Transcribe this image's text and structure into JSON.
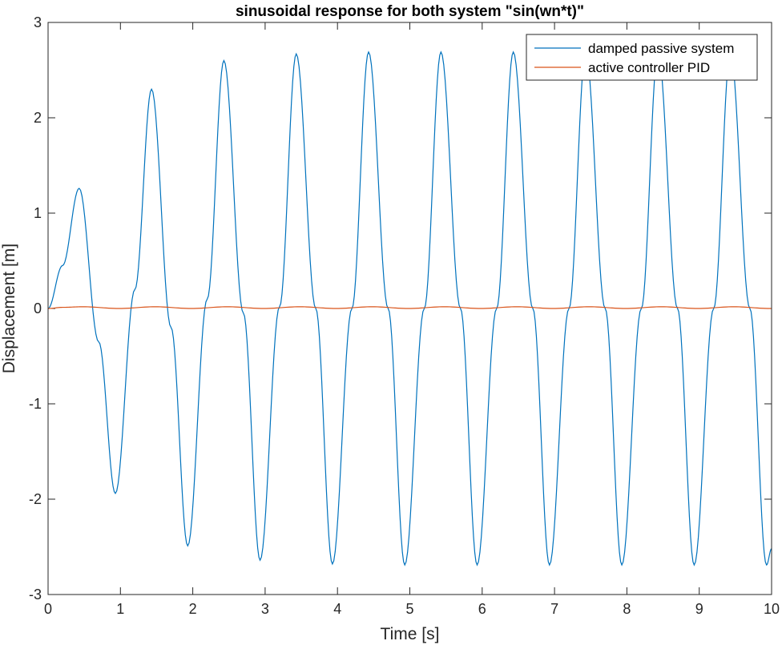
{
  "chart_data": {
    "type": "line",
    "title": "sinusoidal response for both system \"sin(wn*t)\"",
    "xlabel": "Time [s]",
    "ylabel": "Displacement [m]",
    "xlim": [
      0,
      10
    ],
    "ylim": [
      -3,
      3
    ],
    "xticks": [
      0,
      1,
      2,
      3,
      4,
      5,
      6,
      7,
      8,
      9,
      10
    ],
    "yticks": [
      -3,
      -2,
      -1,
      0,
      1,
      2,
      3
    ],
    "xtick_labels": [
      "0",
      "1",
      "2",
      "3",
      "4",
      "5",
      "6",
      "7",
      "8",
      "9",
      "10"
    ],
    "ytick_labels": [
      "-3",
      "-2",
      "-1",
      "0",
      "1",
      "2",
      "3"
    ],
    "grid": false,
    "legend_position": "top-right",
    "series": [
      {
        "name": "damped passive system",
        "color": "#0072BD",
        "x": [
          0,
          0.2,
          0.43,
          0.7,
          0.93,
          1.2,
          1.43,
          1.7,
          1.93,
          2.2,
          2.43,
          2.7,
          2.93,
          3.2,
          3.43,
          3.7,
          3.93,
          4.2,
          4.43,
          4.7,
          4.93,
          5.2,
          5.43,
          5.7,
          5.93,
          6.2,
          6.43,
          6.7,
          6.93,
          7.2,
          7.43,
          7.7,
          7.93,
          8.2,
          8.43,
          8.7,
          8.93,
          9.2,
          9.43,
          9.7,
          9.93,
          10.0
        ],
        "y": [
          0,
          0.45,
          1.26,
          -0.35,
          -1.94,
          0.2,
          2.3,
          -0.2,
          -2.49,
          0.1,
          2.6,
          -0.05,
          -2.64,
          0.02,
          2.67,
          0.0,
          -2.68,
          0.0,
          2.69,
          0.0,
          -2.69,
          0.0,
          2.69,
          0.0,
          -2.69,
          0.0,
          2.69,
          0.0,
          -2.69,
          0.0,
          2.69,
          0.0,
          -2.69,
          0.0,
          2.69,
          0.0,
          -2.69,
          0.0,
          2.69,
          0.0,
          -2.69,
          -2.52
        ]
      },
      {
        "name": "active controller PID",
        "color": "#D95319",
        "x": [
          0,
          0.2,
          0.48,
          0.98,
          1.48,
          1.98,
          2.48,
          2.98,
          3.48,
          3.98,
          4.48,
          4.98,
          5.48,
          5.98,
          6.48,
          6.98,
          7.48,
          7.98,
          8.48,
          8.98,
          9.48,
          9.98,
          10.0
        ],
        "y": [
          0,
          0.012,
          0.018,
          0.0,
          0.018,
          0.0,
          0.018,
          0.0,
          0.018,
          0.0,
          0.018,
          0.0,
          0.018,
          0.0,
          0.018,
          0.0,
          0.018,
          0.0,
          0.018,
          0.0,
          0.018,
          0.0,
          0.0
        ]
      }
    ]
  }
}
